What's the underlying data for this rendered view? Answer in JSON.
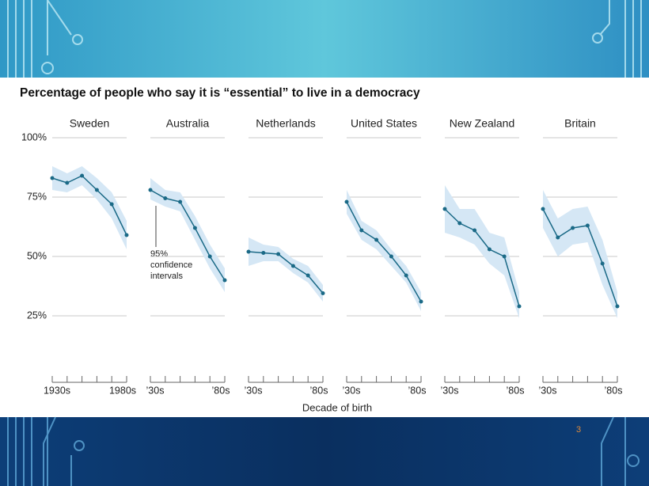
{
  "slide": {
    "title": "Percentage of people who say it is “essential” to live in a democracy",
    "x_label": "Decade of birth",
    "annotation": [
      "95%",
      "confidence",
      "intervals"
    ],
    "page_number": "3"
  },
  "chart_data": [
    {
      "type": "line",
      "title": "Sweden",
      "categories": [
        "1930s",
        null,
        null,
        null,
        null,
        "1980s"
      ],
      "values": [
        83,
        81,
        84,
        78,
        72,
        59
      ],
      "ci_upper": [
        88,
        85,
        88,
        83,
        77,
        65
      ],
      "ci_lower": [
        78,
        77,
        80,
        74,
        66,
        53
      ],
      "color": "#1b6a87",
      "band_color": "#d5e7f5",
      "ylim": [
        0,
        100
      ],
      "yticks": [
        {
          "value": 25,
          "label": "25%"
        },
        {
          "value": 50,
          "label": "50%"
        },
        {
          "value": 75,
          "label": "75%"
        },
        {
          "value": 100,
          "label": "100%"
        }
      ],
      "grid": true
    },
    {
      "type": "line",
      "title": "Australia",
      "categories": [
        "’30s",
        null,
        null,
        null,
        null,
        "’80s"
      ],
      "values": [
        78,
        74.5,
        73,
        62,
        50,
        40
      ],
      "ci_upper": [
        83,
        78,
        77,
        67,
        55,
        45
      ],
      "ci_lower": [
        74,
        71,
        69,
        57,
        45,
        35
      ],
      "color": "#1b6a87",
      "band_color": "#d5e7f5",
      "ylim": [
        0,
        100
      ],
      "yticks": [
        25,
        50,
        75,
        100
      ],
      "grid": true
    },
    {
      "type": "line",
      "title": "Netherlands",
      "categories": [
        "’30s",
        null,
        null,
        null,
        null,
        "’80s"
      ],
      "values": [
        52,
        51.5,
        51,
        46,
        42,
        34.5
      ],
      "ci_upper": [
        58,
        55,
        54,
        49,
        46,
        38
      ],
      "ci_lower": [
        46,
        48,
        48,
        43,
        39,
        31
      ],
      "color": "#1b6a87",
      "band_color": "#d5e7f5",
      "ylim": [
        0,
        100
      ],
      "yticks": [
        25,
        50,
        75,
        100
      ],
      "grid": true
    },
    {
      "type": "line",
      "title": "United States",
      "categories": [
        "’30s",
        null,
        null,
        null,
        null,
        "’80s"
      ],
      "values": [
        73,
        61,
        57,
        50,
        42,
        31
      ],
      "ci_upper": [
        78,
        65,
        61,
        53,
        46,
        35
      ],
      "ci_lower": [
        68,
        57,
        53,
        46,
        39,
        27
      ],
      "color": "#1b6a87",
      "band_color": "#d5e7f5",
      "ylim": [
        0,
        100
      ],
      "yticks": [
        25,
        50,
        75,
        100
      ],
      "grid": true
    },
    {
      "type": "line",
      "title": "New Zealand",
      "categories": [
        "’30s",
        null,
        null,
        null,
        null,
        "’80s"
      ],
      "values": [
        70,
        64,
        61,
        53,
        50,
        29
      ],
      "ci_upper": [
        80,
        70,
        70,
        60,
        58,
        35
      ],
      "ci_lower": [
        60,
        58,
        55,
        47,
        42,
        24
      ],
      "color": "#1b6a87",
      "band_color": "#d5e7f5",
      "ylim": [
        0,
        100
      ],
      "yticks": [
        25,
        50,
        75,
        100
      ],
      "grid": true
    },
    {
      "type": "line",
      "title": "Britain",
      "categories": [
        "’30s",
        null,
        null,
        null,
        null,
        "’80s"
      ],
      "values": [
        70,
        58,
        62,
        63,
        47,
        29
      ],
      "ci_upper": [
        78,
        66,
        70,
        71,
        57,
        35
      ],
      "ci_lower": [
        62,
        50,
        55,
        56,
        38,
        24
      ],
      "color": "#1b6a87",
      "band_color": "#d5e7f5",
      "ylim": [
        0,
        100
      ],
      "yticks": [
        25,
        50,
        75,
        100
      ],
      "grid": true
    }
  ]
}
